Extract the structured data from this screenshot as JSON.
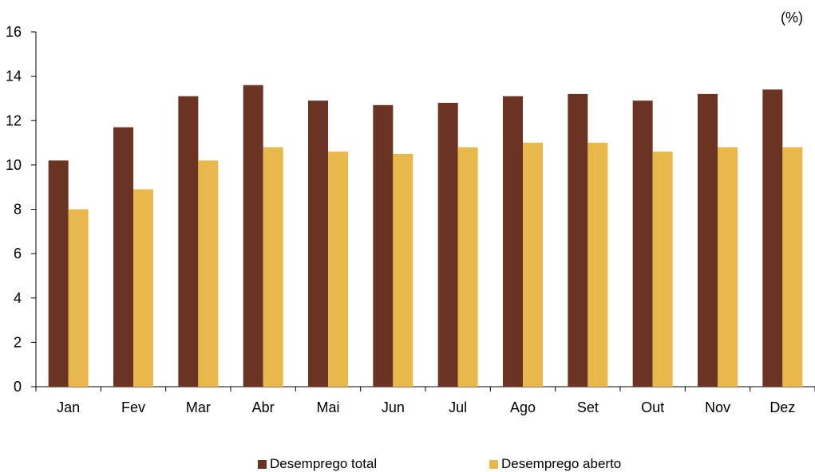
{
  "chart_data": {
    "type": "bar",
    "unit": "(%)",
    "categories": [
      "Jan",
      "Fev",
      "Mar",
      "Abr",
      "Mai",
      "Jun",
      "Jul",
      "Ago",
      "Set",
      "Out",
      "Nov",
      "Dez"
    ],
    "series": [
      {
        "name": "Desemprego total",
        "color": "#6b3322",
        "values": [
          10.2,
          11.7,
          13.1,
          13.6,
          12.9,
          12.7,
          12.8,
          13.1,
          13.2,
          12.9,
          13.2,
          13.4
        ]
      },
      {
        "name": "Desemprego aberto",
        "color": "#e8b84a",
        "values": [
          8.0,
          8.9,
          10.2,
          10.8,
          10.6,
          10.5,
          10.8,
          11.0,
          11.0,
          10.6,
          10.8,
          10.8
        ]
      }
    ],
    "ylim": [
      0,
      16
    ],
    "yticks": [
      0,
      2,
      4,
      6,
      8,
      10,
      12,
      14,
      16
    ],
    "legend_position": "bottom",
    "grid": false
  }
}
